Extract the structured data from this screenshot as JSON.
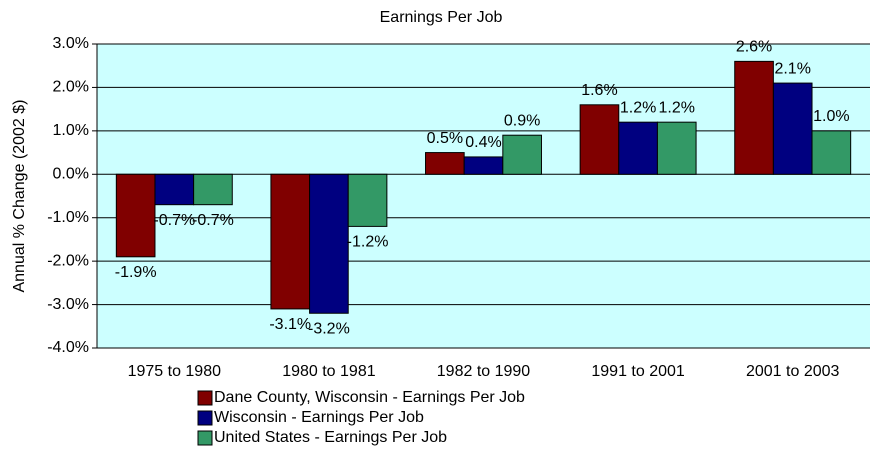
{
  "chart_data": {
    "type": "bar",
    "title": "Earnings Per Job",
    "y_label": "Annual % Change (2002 $)",
    "categories": [
      "1975 to 1980",
      "1980 to 1981",
      "1982 to 1990",
      "1991 to 2001",
      "2001 to 2003"
    ],
    "series": [
      {
        "name": "Dane County, Wisconsin - Earnings Per Job",
        "color": "#800000",
        "values": [
          -1.9,
          -3.1,
          0.5,
          1.6,
          2.6
        ],
        "value_labels": [
          "-1.9%",
          "-3.1%",
          "0.5%",
          "1.6%",
          "2.6%"
        ]
      },
      {
        "name": "Wisconsin - Earnings Per Job",
        "color": "#000080",
        "values": [
          -0.7,
          -3.2,
          0.4,
          1.2,
          2.1
        ],
        "value_labels": [
          "-0.7%",
          "-3.2%",
          "0.4%",
          "1.2%",
          "2.1%"
        ]
      },
      {
        "name": "United States - Earnings Per Job",
        "color": "#339966",
        "values": [
          -0.7,
          -1.2,
          0.9,
          1.2,
          1.0
        ],
        "value_labels": [
          "-0.7%",
          "-1.2%",
          "0.9%",
          "1.2%",
          "1.0%"
        ]
      }
    ],
    "ylim": [
      -4,
      3
    ],
    "yticks": [
      {
        "value": -4,
        "label": "-4.0%"
      },
      {
        "value": -3,
        "label": "-3.0%"
      },
      {
        "value": -2,
        "label": "-2.0%"
      },
      {
        "value": -1,
        "label": "-1.0%"
      },
      {
        "value": 0,
        "label": "0.0%"
      },
      {
        "value": 1,
        "label": "1.0%"
      },
      {
        "value": 2,
        "label": "2.0%"
      },
      {
        "value": 3,
        "label": "3.0%"
      }
    ],
    "grid": true,
    "plot_background": "#ccffff"
  }
}
